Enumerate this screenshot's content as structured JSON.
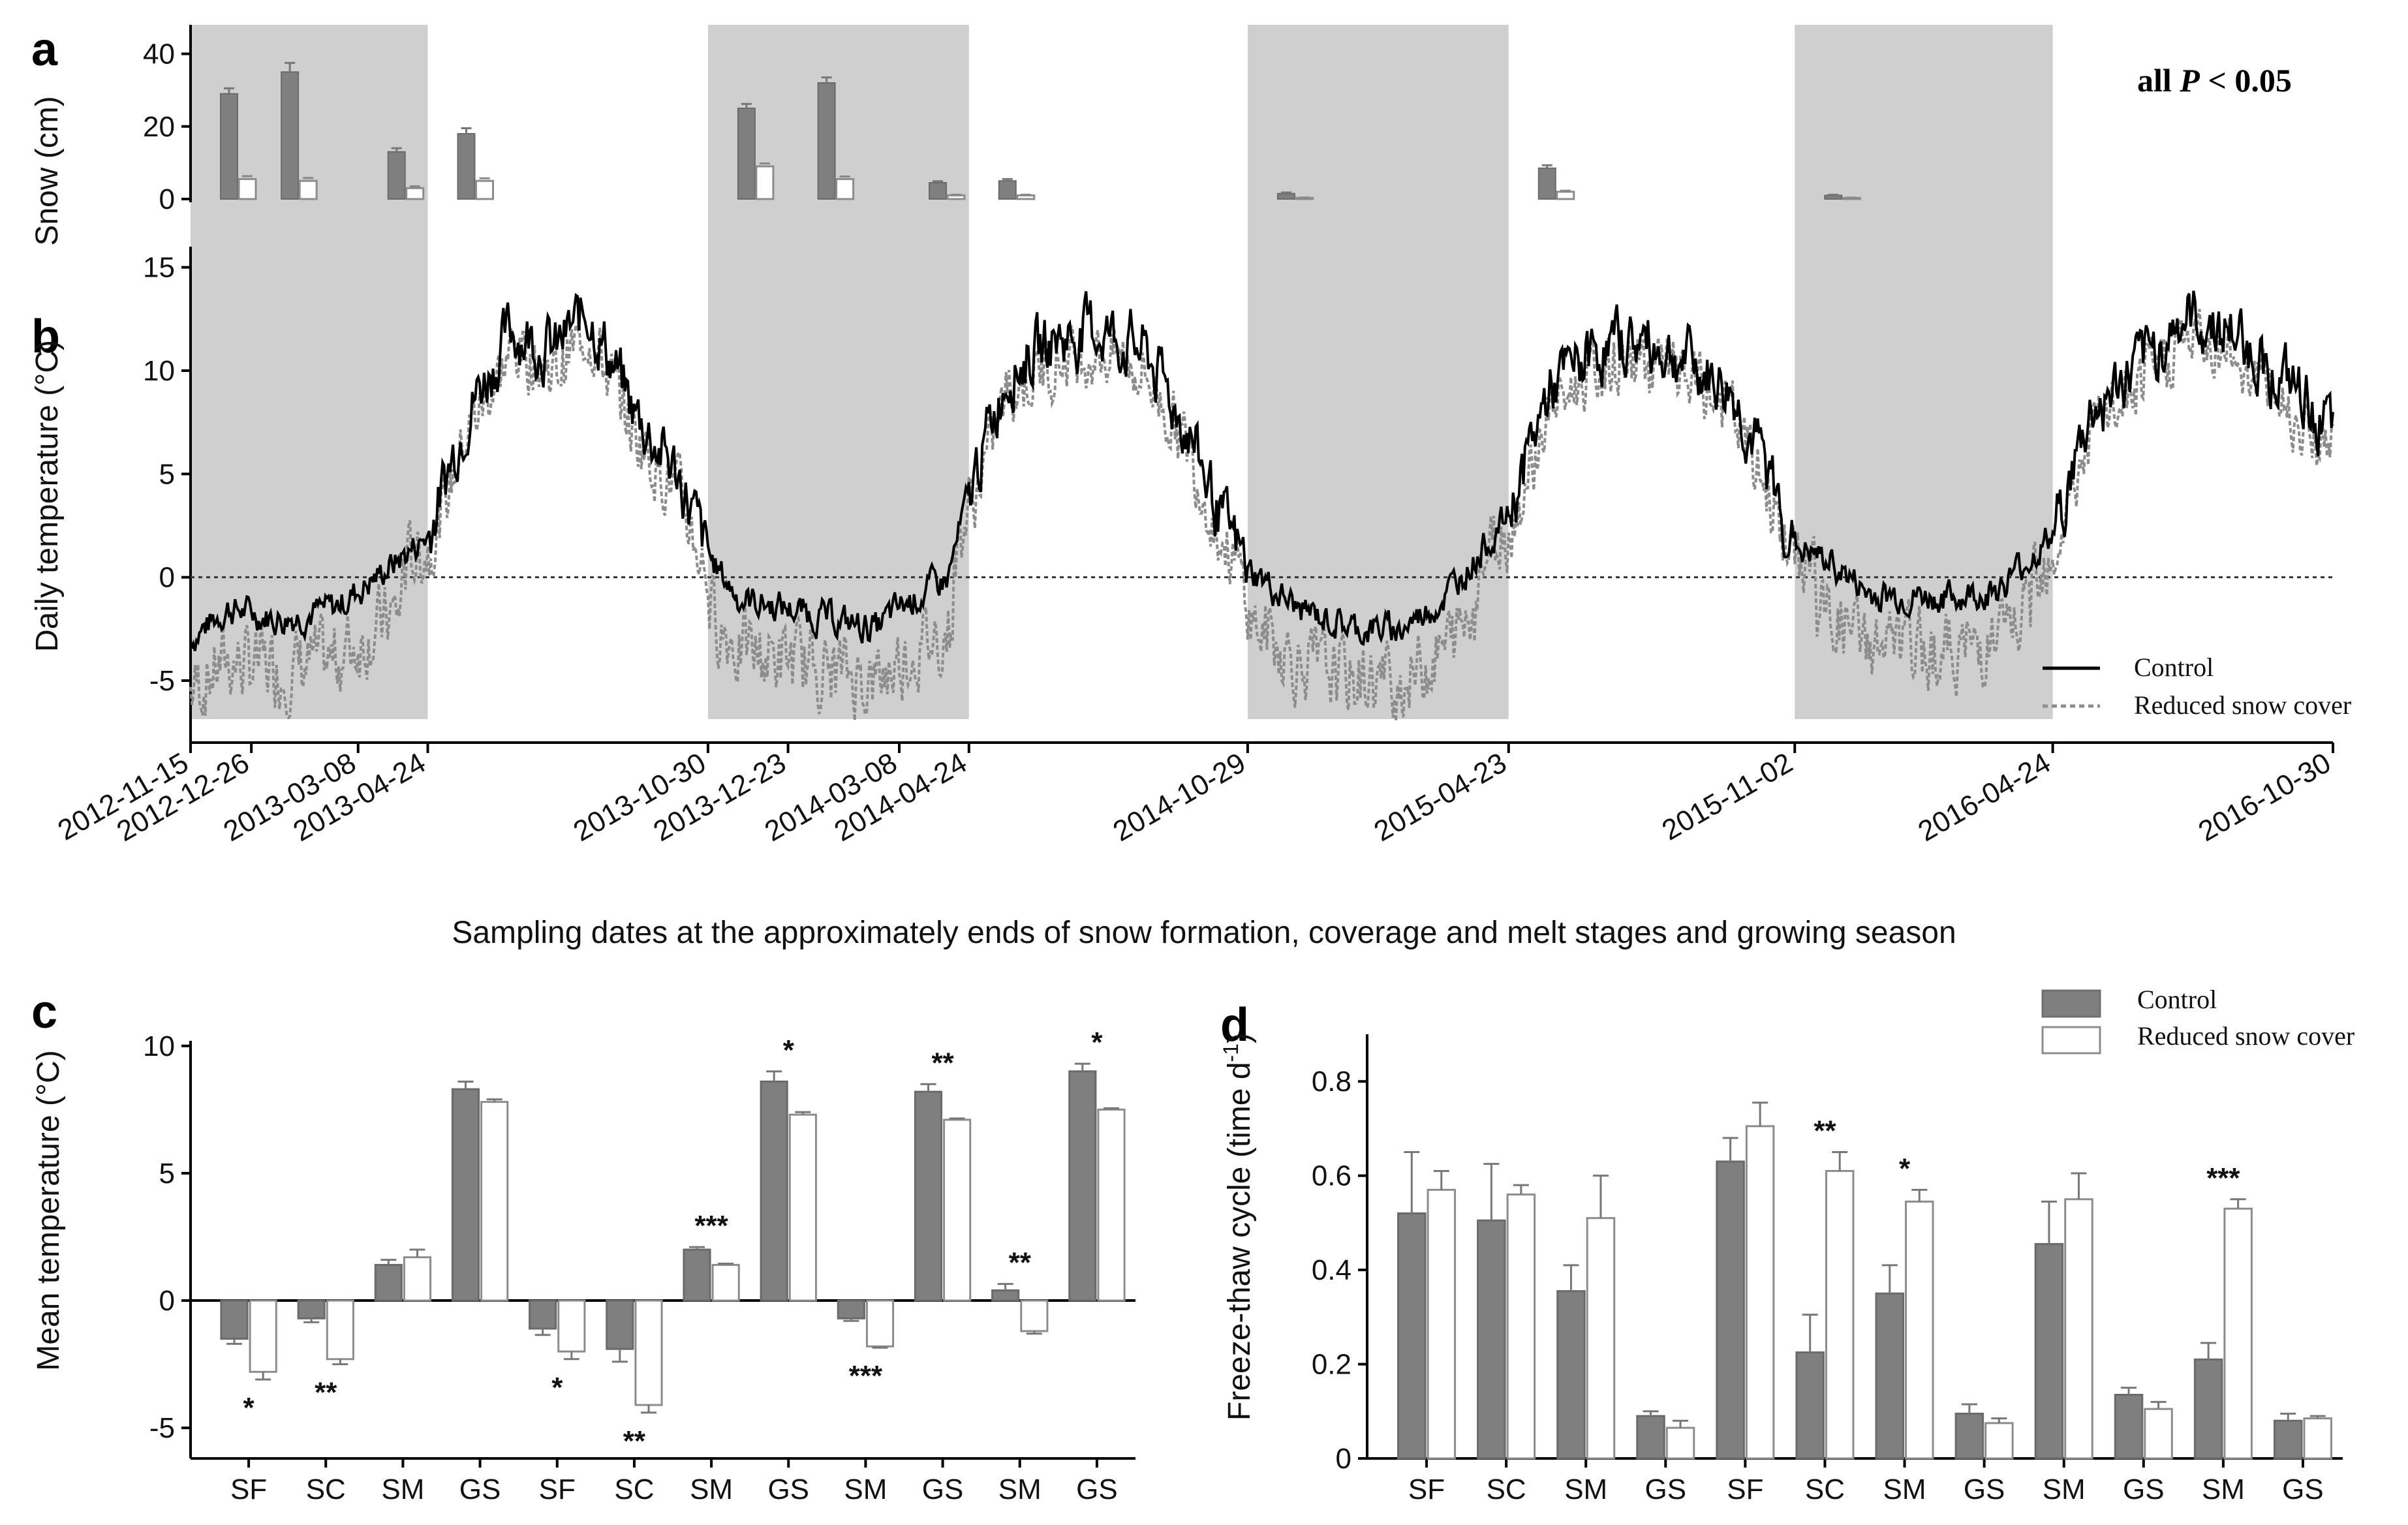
{
  "figure": {
    "caption_axis_x": "Sampling dates at the approximately ends of snow formation, coverage and melt stages and growing season",
    "note": "all P < 0.05",
    "note_parts": {
      "prefix": "all ",
      "italic": "P",
      "suffix": " < 0.05"
    }
  },
  "colors": {
    "control": "#7f7f7f",
    "reduced": "#ffffff",
    "reduced_stroke": "#8c8c8c",
    "shade": "#cfcfcf",
    "reduced_line": "#8c8c8c",
    "control_line": "#000000"
  },
  "panel_a": {
    "label": "a",
    "ylabel": "Snow (cm)",
    "yticks": [
      0,
      20,
      40
    ],
    "ylim": [
      0,
      48
    ],
    "series": [
      {
        "date_index": 0,
        "control": 29,
        "control_err": 1.5,
        "reduced": 5.5,
        "reduced_err": 0.8
      },
      {
        "date_index": 1,
        "control": 35,
        "control_err": 2.5,
        "reduced": 5,
        "reduced_err": 0.8
      },
      {
        "date_index": 2,
        "control": 13,
        "control_err": 1,
        "reduced": 3,
        "reduced_err": 0.5
      },
      {
        "date_index": 3,
        "control": 18,
        "control_err": 1.5,
        "reduced": 5,
        "reduced_err": 0.7
      },
      {
        "date_index": 4,
        "control": 25,
        "control_err": 1.2,
        "reduced": 9,
        "reduced_err": 0.8
      },
      {
        "date_index": 5,
        "control": 32,
        "control_err": 1.5,
        "reduced": 5.5,
        "reduced_err": 0.7
      },
      {
        "date_index": 6,
        "control": 4.5,
        "control_err": 0.4,
        "reduced": 1,
        "reduced_err": 0.2
      },
      {
        "date_index": 7,
        "control": 5,
        "control_err": 0.5,
        "reduced": 1,
        "reduced_err": 0.2
      },
      {
        "date_index": 8,
        "control": 1.5,
        "control_err": 0.3,
        "reduced": 0.3,
        "reduced_err": 0.1
      },
      {
        "date_index": 9,
        "control": 8.5,
        "control_err": 0.8,
        "reduced": 2,
        "reduced_err": 0.3
      },
      {
        "date_index": 10,
        "control": 1,
        "control_err": 0.2,
        "reduced": 0.3,
        "reduced_err": 0.1
      }
    ]
  },
  "panel_b": {
    "label": "b",
    "ylabel": "Daily temperature (°C)",
    "yticks": [
      -5,
      0,
      5,
      10,
      15
    ],
    "ylim": [
      -8,
      16
    ],
    "xlim": [
      "2012-11-15",
      "2016-10-30"
    ],
    "snow_periods": [
      [
        "2012-11-15",
        "2013-04-24"
      ],
      [
        "2013-10-30",
        "2014-04-24"
      ],
      [
        "2014-10-29",
        "2015-04-23"
      ],
      [
        "2015-11-02",
        "2016-04-24"
      ]
    ],
    "dates": [
      "2012-11-15",
      "2012-12-26",
      "2013-03-08",
      "2013-04-24",
      "2013-10-30",
      "2013-12-23",
      "2014-03-08",
      "2014-04-24",
      "2014-10-29",
      "2015-04-23",
      "2015-11-02",
      "2016-04-24",
      "2016-10-30"
    ],
    "legend": {
      "control": "Control",
      "reduced": "Reduced snow cover"
    },
    "control_profile": [
      [
        "2012-11-15",
        -3
      ],
      [
        "2012-12-10",
        -1.5
      ],
      [
        "2013-01-15",
        -2
      ],
      [
        "2013-02-20",
        -1.5
      ],
      [
        "2013-03-20",
        0
      ],
      [
        "2013-04-24",
        2
      ],
      [
        "2013-05-20",
        8
      ],
      [
        "2013-06-20",
        12
      ],
      [
        "2013-07-20",
        11
      ],
      [
        "2013-08-10",
        13
      ],
      [
        "2013-09-10",
        8
      ],
      [
        "2013-10-10",
        5
      ],
      [
        "2013-10-30",
        1
      ],
      [
        "2013-11-20",
        -1
      ],
      [
        "2013-12-23",
        -1.5
      ],
      [
        "2014-01-20",
        -2
      ],
      [
        "2014-02-20",
        -2.5
      ],
      [
        "2014-03-08",
        -1.5
      ],
      [
        "2014-04-10",
        0
      ],
      [
        "2014-04-24",
        4
      ],
      [
        "2014-05-20",
        10
      ],
      [
        "2014-06-20",
        11.5
      ],
      [
        "2014-07-20",
        12
      ],
      [
        "2014-08-20",
        11
      ],
      [
        "2014-09-20",
        7
      ],
      [
        "2014-10-10",
        3
      ],
      [
        "2014-10-29",
        0.5
      ],
      [
        "2014-12-01",
        -1.5
      ],
      [
        "2015-01-10",
        -2.5
      ],
      [
        "2015-02-10",
        -2.5
      ],
      [
        "2015-03-10",
        -1
      ],
      [
        "2015-04-23",
        3
      ],
      [
        "2015-05-20",
        9
      ],
      [
        "2015-06-20",
        11
      ],
      [
        "2015-07-20",
        11.5
      ],
      [
        "2015-08-20",
        10.5
      ],
      [
        "2015-09-20",
        9
      ],
      [
        "2015-10-15",
        5
      ],
      [
        "2015-11-02",
        1.5
      ],
      [
        "2015-12-01",
        0.5
      ],
      [
        "2015-12-20",
        -0.8
      ],
      [
        "2016-01-20",
        -1
      ],
      [
        "2016-02-20",
        -1
      ],
      [
        "2016-03-20",
        -0.5
      ],
      [
        "2016-04-24",
        2
      ],
      [
        "2016-05-20",
        8
      ],
      [
        "2016-06-20",
        10
      ],
      [
        "2016-07-20",
        12.5
      ],
      [
        "2016-08-20",
        12
      ],
      [
        "2016-09-20",
        10
      ],
      [
        "2016-10-30",
        7
      ]
    ],
    "reduced_offset": {
      "snow": -2.5,
      "growing": -1
    }
  },
  "panel_c": {
    "label": "c",
    "ylabel": "Mean temperature (°C)",
    "yticks": [
      -5,
      0,
      5,
      10
    ],
    "ylim": [
      -6.2,
      10.2
    ],
    "categories": [
      "SF",
      "SC",
      "SM",
      "GS",
      "SF",
      "SC",
      "SM",
      "GS",
      "SM",
      "GS",
      "SM",
      "GS"
    ],
    "control": [
      -1.5,
      -0.7,
      1.4,
      8.3,
      -1.1,
      -1.9,
      2.0,
      8.6,
      -0.7,
      8.2,
      0.4,
      9.0
    ],
    "control_err": [
      0.2,
      0.15,
      0.2,
      0.3,
      0.25,
      0.5,
      0.1,
      0.4,
      0.1,
      0.3,
      0.25,
      0.3
    ],
    "reduced": [
      -2.8,
      -2.3,
      1.7,
      7.8,
      -2.0,
      -4.1,
      1.4,
      7.3,
      -1.8,
      7.1,
      -1.2,
      7.5
    ],
    "reduced_err": [
      0.3,
      0.2,
      0.3,
      0.1,
      0.3,
      0.3,
      0.05,
      0.1,
      0.05,
      0.05,
      0.1,
      0.05
    ],
    "sig": [
      "*",
      "**",
      "",
      "",
      "*",
      "**",
      "***",
      "*",
      "***",
      "**",
      "**",
      "*"
    ],
    "sig_position": [
      "below",
      "below",
      "",
      "",
      "below",
      "below",
      "above",
      "above",
      "below",
      "above",
      "above",
      "above"
    ]
  },
  "panel_d": {
    "label": "d",
    "ylabel": "Freeze-thaw cycle (time d",
    "ylabel_sup": "-1",
    "ylabel_close": ")",
    "yticks": [
      "0",
      "0.2",
      "0.4",
      "0.6",
      "0.8"
    ],
    "ylim": [
      0,
      0.9
    ],
    "categories": [
      "SF",
      "SC",
      "SM",
      "GS",
      "SF",
      "SC",
      "SM",
      "GS",
      "SM",
      "GS",
      "SM",
      "GS"
    ],
    "control": [
      0.52,
      0.505,
      0.355,
      0.09,
      0.63,
      0.225,
      0.35,
      0.095,
      0.455,
      0.135,
      0.21,
      0.08
    ],
    "control_err": [
      0.13,
      0.12,
      0.055,
      0.01,
      0.05,
      0.08,
      0.06,
      0.02,
      0.09,
      0.015,
      0.035,
      0.015
    ],
    "reduced": [
      0.57,
      0.56,
      0.51,
      0.065,
      0.705,
      0.61,
      0.545,
      0.075,
      0.55,
      0.105,
      0.53,
      0.085
    ],
    "reduced_err": [
      0.04,
      0.02,
      0.09,
      0.015,
      0.05,
      0.04,
      0.025,
      0.01,
      0.055,
      0.015,
      0.02,
      0.005
    ],
    "sig": [
      "",
      "",
      "",
      "",
      "",
      "**",
      "*",
      "",
      "",
      "",
      "***",
      ""
    ],
    "legend": {
      "control": "Control",
      "reduced": "Reduced snow cover"
    }
  }
}
